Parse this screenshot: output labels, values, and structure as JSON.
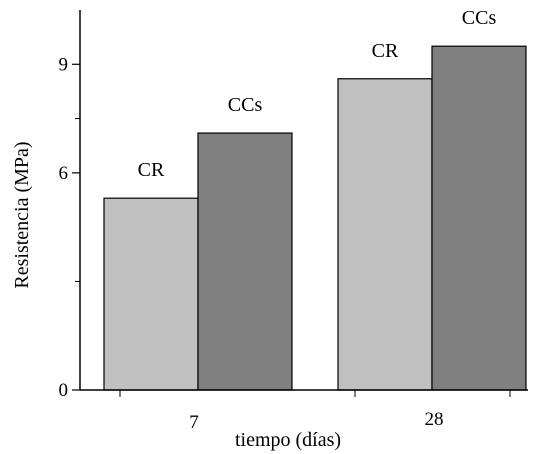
{
  "chart_data": {
    "type": "bar",
    "xlabel": "tiempo (días)",
    "ylabel": "Resistencia (MPa)",
    "categories": [
      "7",
      "28"
    ],
    "series": [
      {
        "name": "CR",
        "color": "#c0c0c0",
        "values": [
          5.3,
          8.6
        ],
        "labels": [
          "CR",
          "CR"
        ]
      },
      {
        "name": "CCs",
        "color": "#808080",
        "values": [
          7.1,
          9.5
        ],
        "labels": [
          "CCs",
          "CCs"
        ]
      }
    ],
    "ylim": [
      0,
      10.5
    ],
    "yticks": [
      {
        "value": 0,
        "label": "0"
      },
      {
        "value": 6,
        "label": "6"
      },
      {
        "value": 9,
        "label": "9"
      }
    ],
    "yminor_ticks": [
      3,
      7.5
    ],
    "grid": false,
    "legend": "none"
  }
}
